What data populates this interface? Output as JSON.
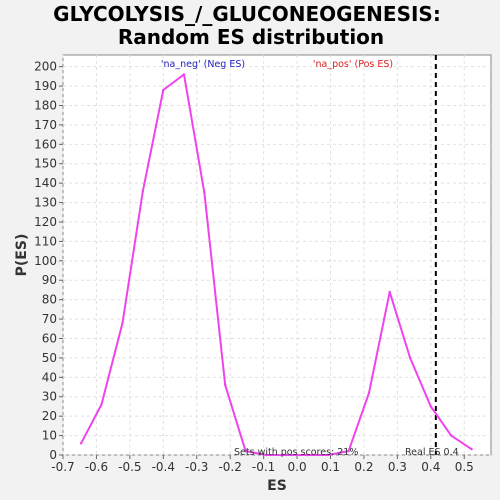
{
  "chart_data": {
    "type": "line",
    "title_line1": "GLYCOLYSIS_/_GLUCONEOGENESIS:",
    "title_line2": "Random ES distribution",
    "xlabel": "ES",
    "ylabel": "P(ES)",
    "xlim": [
      -0.7,
      0.58
    ],
    "ylim": [
      0,
      206
    ],
    "x_ticks": [
      "-0.7",
      "-0.6",
      "-0.5",
      "-0.4",
      "-0.3",
      "-0.2",
      "-0.1",
      "0.0",
      "0.1",
      "0.2",
      "0.3",
      "0.4",
      "0.5"
    ],
    "y_ticks": [
      "0",
      "10",
      "20",
      "30",
      "40",
      "50",
      "60",
      "70",
      "80",
      "90",
      "100",
      "110",
      "120",
      "130",
      "140",
      "150",
      "160",
      "170",
      "180",
      "190",
      "200"
    ],
    "grid": true,
    "series": [
      {
        "color": "#ee44ee",
        "points": [
          [
            -0.646,
            6
          ],
          [
            -0.585,
            26
          ],
          [
            -0.522,
            68
          ],
          [
            -0.461,
            136
          ],
          [
            -0.4,
            188
          ],
          [
            -0.338,
            196
          ],
          [
            -0.277,
            135
          ],
          [
            -0.215,
            36
          ],
          [
            -0.154,
            2
          ],
          [
            -0.092,
            0
          ],
          [
            -0.031,
            0
          ],
          [
            0.031,
            0
          ],
          [
            0.092,
            0
          ],
          [
            0.154,
            2
          ],
          [
            0.215,
            32
          ],
          [
            0.277,
            84
          ],
          [
            0.338,
            50
          ],
          [
            0.4,
            25
          ],
          [
            0.461,
            10
          ],
          [
            0.522,
            3
          ]
        ]
      }
    ],
    "annotations": {
      "neg_label": "'na_neg' (Neg ES)",
      "pos_label": "'na_pos' (Pos ES)",
      "pos_scores": "Sets with pos scores: 21%",
      "real_es": "Real ES 0.4"
    },
    "real_es_value": 0.415,
    "colors": {
      "neg_label": "#2222bb",
      "pos_label": "#dd2222",
      "real_es_line": "#000000",
      "grid": "#e0e0e0"
    }
  }
}
